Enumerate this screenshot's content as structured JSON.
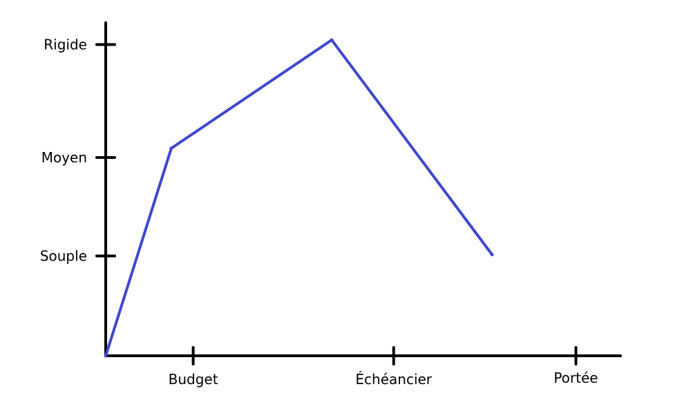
{
  "colors": {
    "background": "#ffffff",
    "axis": "#000000",
    "line": "#3f48cc"
  },
  "chart_data": {
    "type": "line",
    "title": "",
    "xlabel": "",
    "ylabel": "",
    "grid": false,
    "legend": "none",
    "x_categories": [
      "Budget",
      "Échéancier",
      "Portée"
    ],
    "y_categories": [
      "Souple",
      "Moyen",
      "Rigide"
    ],
    "series": [
      {
        "points": [
          {
            "x": 0,
            "y": 0
          },
          {
            "x": 0.9,
            "y": 2.05
          },
          {
            "x": 3.1,
            "y": 3.12
          },
          {
            "x": 5.3,
            "y": 1.0
          }
        ]
      }
    ]
  }
}
